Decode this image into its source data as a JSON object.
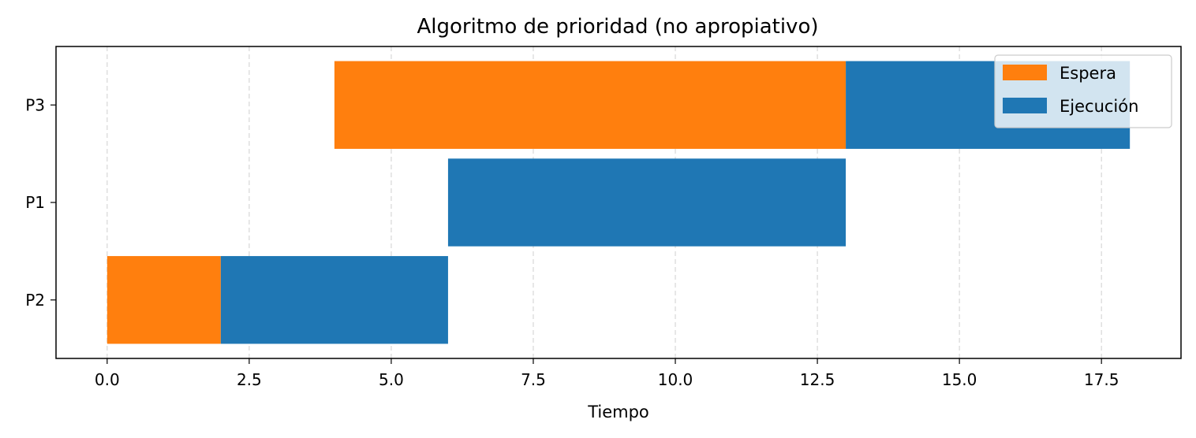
{
  "chart_data": {
    "type": "bar",
    "orientation": "horizontal",
    "stacked": true,
    "title": "Algoritmo de prioridad (no apropiativo)",
    "xlabel": "Tiempo",
    "ylabel": "",
    "xlim": [
      -0.9,
      18.9
    ],
    "xticks": [
      0.0,
      2.5,
      5.0,
      7.5,
      10.0,
      12.5,
      15.0,
      17.5
    ],
    "xtick_labels": [
      "0.0",
      "2.5",
      "5.0",
      "7.5",
      "10.0",
      "12.5",
      "15.0",
      "17.5"
    ],
    "grid": "x-dashed",
    "legend_position": "top-right",
    "categories": [
      "P2",
      "P1",
      "P3"
    ],
    "series": [
      {
        "name": "Espera",
        "color": "#ff7f0e",
        "segments": [
          {
            "category": "P2",
            "start": 0,
            "end": 2
          },
          {
            "category": "P1",
            "start": 6,
            "end": 6
          },
          {
            "category": "P3",
            "start": 4,
            "end": 13
          }
        ]
      },
      {
        "name": "Ejecución",
        "color": "#1f77b4",
        "segments": [
          {
            "category": "P2",
            "start": 2,
            "end": 6
          },
          {
            "category": "P1",
            "start": 6,
            "end": 13
          },
          {
            "category": "P3",
            "start": 13,
            "end": 18
          }
        ]
      }
    ]
  }
}
